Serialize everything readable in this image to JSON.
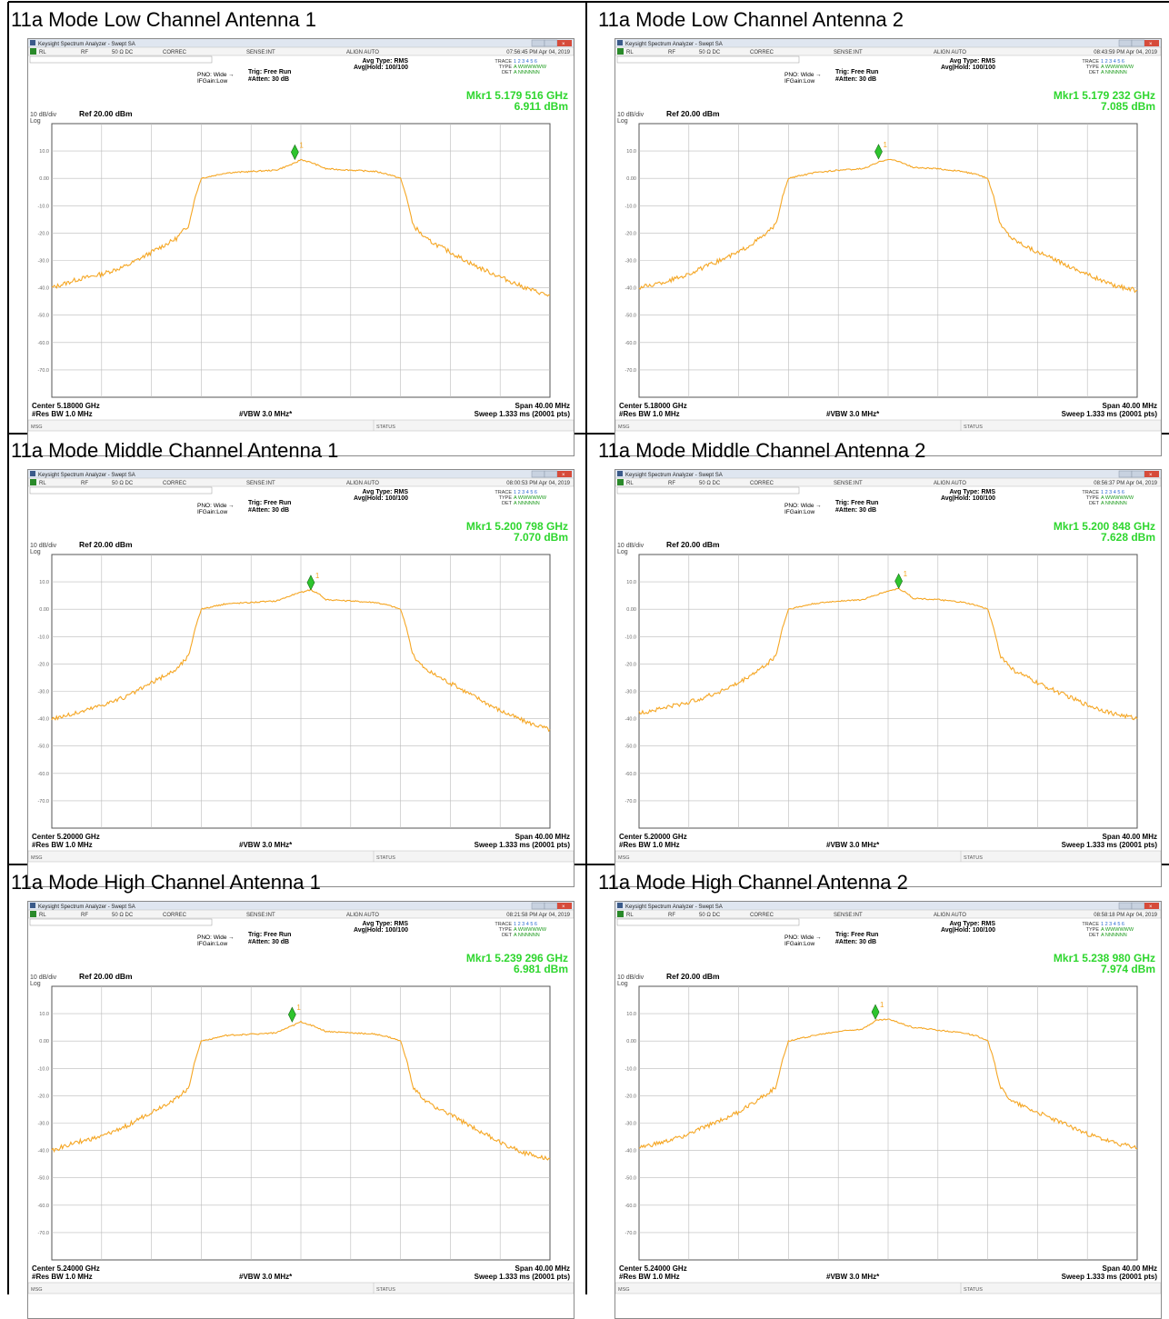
{
  "panels": [
    {
      "title": "11a Mode Low Channel Antenna 1",
      "window_title": "Keysight Spectrum Analyzer - Swept SA",
      "timestamp": "07:56:45 PM Apr 04, 2019",
      "marker_freq": "Mkr1 5.179 516 GHz",
      "marker_level": "6.911 dBm",
      "center": "Center 5.18000 GHz",
      "chart_data": {
        "type": "line",
        "center_ghz": 5.18,
        "span_mhz": 40,
        "ref_dbm": 20,
        "db_per_div": 10,
        "marker": {
          "freq_ghz": 5.179516,
          "level_dbm": 6.911
        },
        "x_offset_mhz": [
          -20,
          -18,
          -16,
          -14,
          -12,
          -10,
          -9,
          -8.5,
          -8,
          -7,
          -6,
          -4,
          -2,
          -0.5,
          0,
          1,
          2,
          4,
          6,
          7,
          8,
          8.5,
          9,
          10,
          12,
          14,
          16,
          18,
          20
        ],
        "y_dbm": [
          -40,
          -37,
          -35,
          -32,
          -27,
          -22,
          -17,
          -7,
          0,
          1,
          2,
          2.5,
          3,
          5.5,
          6.9,
          5.5,
          3.5,
          3,
          2.5,
          1.5,
          0,
          -7,
          -17,
          -22,
          -27,
          -32,
          -36,
          -40,
          -43
        ]
      }
    },
    {
      "title": "11a Mode Low Channel Antenna 2",
      "window_title": "Keysight Spectrum Analyzer - Swept SA",
      "timestamp": "08:43:59 PM Apr 04, 2019",
      "marker_freq": "Mkr1 5.179 232 GHz",
      "marker_level": "7.085 dBm",
      "center": "Center 5.18000 GHz",
      "chart_data": {
        "type": "line",
        "center_ghz": 5.18,
        "span_mhz": 40,
        "ref_dbm": 20,
        "db_per_div": 10,
        "marker": {
          "freq_ghz": 5.179232,
          "level_dbm": 7.085
        },
        "x_offset_mhz": [
          -20,
          -18,
          -16,
          -14,
          -12,
          -10,
          -9,
          -8.5,
          -8,
          -7,
          -6,
          -4,
          -2,
          -0.7,
          0,
          1,
          2,
          4,
          6,
          7,
          8,
          8.5,
          9,
          10,
          12,
          14,
          16,
          18,
          20
        ],
        "y_dbm": [
          -40,
          -38,
          -35,
          -31,
          -27,
          -21,
          -17,
          -7,
          0,
          1,
          2,
          3,
          3.5,
          6,
          7.1,
          6,
          4,
          3.5,
          2.5,
          1.5,
          0,
          -7,
          -17,
          -22,
          -27,
          -31,
          -35,
          -39,
          -41
        ]
      }
    },
    {
      "title": "11a Mode Middle Channel Antenna 1",
      "window_title": "Keysight Spectrum Analyzer - Swept SA",
      "timestamp": "08:00:53 PM Apr 04, 2019",
      "marker_freq": "Mkr1 5.200 798 GHz",
      "marker_level": "7.070 dBm",
      "center": "Center 5.20000 GHz",
      "chart_data": {
        "type": "line",
        "center_ghz": 5.2,
        "span_mhz": 40,
        "ref_dbm": 20,
        "db_per_div": 10,
        "marker": {
          "freq_ghz": 5.200798,
          "level_dbm": 7.07
        },
        "x_offset_mhz": [
          -20,
          -18,
          -16,
          -14,
          -12,
          -10,
          -9,
          -8.5,
          -8,
          -7,
          -6,
          -4,
          -2,
          -0.5,
          0.8,
          1.5,
          2,
          4,
          6,
          7,
          8,
          8.5,
          9,
          10,
          12,
          14,
          16,
          18,
          20
        ],
        "y_dbm": [
          -40,
          -38,
          -35,
          -32,
          -27,
          -22,
          -17,
          -7,
          0,
          1,
          2,
          2.5,
          3,
          5.5,
          7.1,
          5.5,
          3.5,
          3,
          2.5,
          1.5,
          0,
          -7,
          -17,
          -22,
          -27,
          -32,
          -37,
          -41,
          -44
        ]
      }
    },
    {
      "title": "11a Mode Middle Channel Antenna 2",
      "window_title": "Keysight Spectrum Analyzer - Swept SA",
      "timestamp": "08:56:37 PM Apr 04, 2019",
      "marker_freq": "Mkr1 5.200 848 GHz",
      "marker_level": "7.628 dBm",
      "center": "Center 5.20000 GHz",
      "chart_data": {
        "type": "line",
        "center_ghz": 5.2,
        "span_mhz": 40,
        "ref_dbm": 20,
        "db_per_div": 10,
        "marker": {
          "freq_ghz": 5.200848,
          "level_dbm": 7.628
        },
        "x_offset_mhz": [
          -20,
          -18,
          -16,
          -14,
          -12,
          -10,
          -9,
          -8.5,
          -8,
          -7,
          -6,
          -4,
          -2,
          -0.5,
          0.8,
          1.5,
          2,
          4,
          6,
          7,
          8,
          8.5,
          9,
          10,
          12,
          14,
          16,
          18,
          20
        ],
        "y_dbm": [
          -38,
          -36,
          -34,
          -31,
          -27,
          -21,
          -17,
          -7,
          0,
          1,
          2,
          3,
          3.5,
          6,
          7.6,
          6,
          4,
          3.5,
          2.5,
          1.5,
          0,
          -7,
          -17,
          -22,
          -27,
          -31,
          -35,
          -38,
          -40
        ]
      }
    },
    {
      "title": "11a Mode High Channel Antenna 1",
      "window_title": "Keysight Spectrum Analyzer - Swept SA",
      "timestamp": "08:21:58 PM Apr 04, 2019",
      "marker_freq": "Mkr1 5.239 296 GHz",
      "marker_level": "6.981 dBm",
      "center": "Center 5.24000 GHz",
      "chart_data": {
        "type": "line",
        "center_ghz": 5.24,
        "span_mhz": 40,
        "ref_dbm": 20,
        "db_per_div": 10,
        "marker": {
          "freq_ghz": 5.239296,
          "level_dbm": 6.981
        },
        "x_offset_mhz": [
          -20,
          -18,
          -16,
          -14,
          -12,
          -10,
          -9,
          -8.5,
          -8,
          -7,
          -6,
          -4,
          -2,
          -0.7,
          0,
          1,
          2,
          4,
          6,
          7,
          8,
          8.5,
          9,
          10,
          12,
          14,
          16,
          18,
          20
        ],
        "y_dbm": [
          -40,
          -37,
          -35,
          -31,
          -26,
          -21,
          -17,
          -7,
          0,
          1,
          2,
          2.5,
          3,
          5.5,
          7,
          5.5,
          3.5,
          3,
          2.5,
          1.5,
          0,
          -7,
          -17,
          -22,
          -27,
          -32,
          -37,
          -41,
          -43
        ]
      }
    },
    {
      "title": "11a Mode High Channel Antenna 2",
      "window_title": "Keysight Spectrum Analyzer - Swept SA",
      "timestamp": "08:58:18 PM Apr 04, 2019",
      "marker_freq": "Mkr1 5.238 980 GHz",
      "marker_level": "7.974 dBm",
      "center": "Center 5.24000 GHz",
      "chart_data": {
        "type": "line",
        "center_ghz": 5.24,
        "span_mhz": 40,
        "ref_dbm": 20,
        "db_per_div": 10,
        "marker": {
          "freq_ghz": 5.23898,
          "level_dbm": 7.974
        },
        "x_offset_mhz": [
          -20,
          -18,
          -16,
          -14,
          -12,
          -10,
          -9,
          -8.5,
          -8,
          -7,
          -6,
          -4,
          -2,
          -1,
          0,
          1,
          2,
          4,
          6,
          7,
          8,
          8.5,
          9,
          10,
          12,
          14,
          16,
          18,
          20
        ],
        "y_dbm": [
          -39,
          -37,
          -34,
          -30,
          -26,
          -20,
          -17,
          -7,
          0,
          1,
          2,
          3.5,
          4.5,
          7.5,
          8,
          6.5,
          5,
          4,
          3,
          2,
          0,
          -7,
          -17,
          -22,
          -26,
          -30,
          -34,
          -37,
          -39
        ]
      }
    }
  ],
  "common": {
    "rl": "RL",
    "rf": "RF",
    "ohm": "50 Ω  DC",
    "correc": "CORREC",
    "sense": "SENSE:INT",
    "align": "ALIGN AUTO",
    "avg_type": "Avg Type: RMS",
    "avg_hold": "Avg|Hold: 100/100",
    "trace_label": "TRACE",
    "trace_val": "1 2 3 4 5 6",
    "type_label": "TYPE",
    "type_val": "A WWWWWW",
    "det_label": "DET",
    "det_val": "A NNNNNN",
    "pno": "PNO: Wide",
    "ifgain": "IFGain:Low",
    "trig": "Trig: Free Run",
    "atten": "#Atten: 30 dB",
    "db_div": "10 dB/div",
    "log": "Log",
    "ref": "Ref 20.00 dBm",
    "yticks": [
      "10.0",
      "0.00",
      "-10.0",
      "-20.0",
      "-30.0",
      "-40.0",
      "-50.0",
      "-60.0",
      "-70.0"
    ],
    "res_bw": "#Res BW 1.0 MHz",
    "vbw": "#VBW 3.0 MHz*",
    "span": "Span 40.00 MHz",
    "sweep": "Sweep  1.333 ms (20001 pts)",
    "msg": "MSG",
    "status": "STATUS",
    "marker_num": "1",
    "trace_color": "#f5a623",
    "marker_text_color": "#2ed62e"
  }
}
